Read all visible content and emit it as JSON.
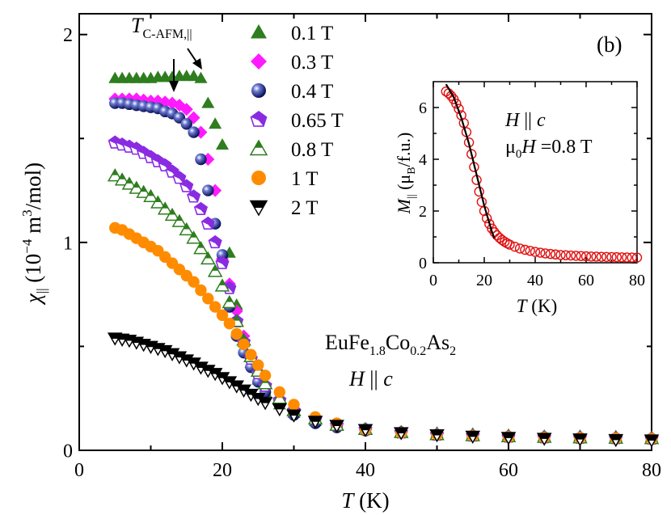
{
  "chart_data": [
    {
      "type": "scatter",
      "panel": "main",
      "xlabel": "T (K)",
      "ylabel": "χ|| (10^-4 m^3/mol)",
      "xlim": [
        0,
        80
      ],
      "ylim": [
        0,
        2.1
      ],
      "x_ticks": [
        "0",
        "20",
        "40",
        "60",
        "80"
      ],
      "y_ticks": [
        "0",
        "1",
        "2"
      ],
      "legend_position": "top-center",
      "annotations": {
        "transition_label": "TC-AFM,||",
        "panel_label": "(b)",
        "compound": "EuFe1.8Co0.2As2",
        "field_direction": "H || c"
      },
      "series": [
        {
          "name": "0.1 T",
          "color": "#2e7d1e",
          "marker": "triangle-up-filled",
          "x": [
            5,
            6,
            7,
            8,
            9,
            10,
            11,
            12,
            13,
            14,
            15,
            16,
            17,
            18,
            19,
            20,
            21,
            22,
            23,
            24,
            25,
            26,
            28,
            30,
            33,
            36,
            40,
            45,
            50,
            55,
            60,
            65,
            70,
            75,
            80
          ],
          "y": [
            1.79,
            1.79,
            1.79,
            1.79,
            1.79,
            1.79,
            1.795,
            1.795,
            1.795,
            1.8,
            1.8,
            1.8,
            1.79,
            1.67,
            1.57,
            1.47,
            0.95,
            0.7,
            0.52,
            0.42,
            0.34,
            0.28,
            0.22,
            0.18,
            0.14,
            0.12,
            0.1,
            0.09,
            0.085,
            0.08,
            0.075,
            0.07,
            0.07,
            0.068,
            0.066
          ]
        },
        {
          "name": "0.3 T",
          "color": "#ff1aff",
          "marker": "diamond-filled",
          "x": [
            5,
            6,
            7,
            8,
            9,
            10,
            11,
            12,
            13,
            14,
            15,
            16,
            17,
            18,
            19,
            20,
            21,
            22,
            23,
            24,
            25,
            26,
            28,
            30,
            33,
            36,
            40,
            45,
            50,
            55,
            60,
            65,
            70,
            75,
            80
          ],
          "y": [
            1.69,
            1.69,
            1.69,
            1.69,
            1.685,
            1.68,
            1.68,
            1.675,
            1.67,
            1.66,
            1.64,
            1.6,
            1.53,
            1.4,
            1.25,
            0.92,
            0.8,
            0.67,
            0.55,
            0.45,
            0.37,
            0.31,
            0.24,
            0.19,
            0.15,
            0.12,
            0.1,
            0.09,
            0.08,
            0.075,
            0.07,
            0.068,
            0.065,
            0.063,
            0.06
          ]
        },
        {
          "name": "0.4 T",
          "color": "#1a237e",
          "marker": "sphere",
          "x": [
            5,
            6,
            7,
            8,
            9,
            10,
            11,
            12,
            13,
            14,
            15,
            16,
            17,
            18,
            19,
            20,
            21,
            22,
            23,
            24,
            25,
            26,
            28,
            30,
            33,
            36,
            40,
            45,
            50,
            55,
            60,
            65,
            70,
            75,
            80
          ],
          "y": [
            1.67,
            1.67,
            1.665,
            1.66,
            1.655,
            1.65,
            1.645,
            1.63,
            1.62,
            1.6,
            1.57,
            1.53,
            1.4,
            1.25,
            1.09,
            0.94,
            0.69,
            0.55,
            0.47,
            0.4,
            0.33,
            0.28,
            0.22,
            0.17,
            0.13,
            0.11,
            0.095,
            0.085,
            0.075,
            0.07,
            0.065,
            0.062,
            0.06,
            0.058,
            0.056
          ]
        },
        {
          "name": "0.65 T",
          "color": "#8a2be2",
          "marker": "pentagon-filled",
          "x": [
            5,
            6,
            7,
            8,
            9,
            10,
            11,
            12,
            13,
            14,
            15,
            16,
            17,
            18,
            19,
            20,
            21,
            22,
            23,
            24,
            25,
            26,
            28,
            30,
            33,
            36,
            40,
            45,
            50,
            55,
            60,
            65,
            70,
            75,
            80
          ],
          "y": [
            1.48,
            1.47,
            1.46,
            1.45,
            1.43,
            1.41,
            1.39,
            1.37,
            1.34,
            1.31,
            1.27,
            1.22,
            1.16,
            1.09,
            1.0,
            0.9,
            0.78,
            0.62,
            0.52,
            0.44,
            0.37,
            0.31,
            0.24,
            0.19,
            0.15,
            0.12,
            0.1,
            0.085,
            0.075,
            0.07,
            0.065,
            0.062,
            0.06,
            0.058,
            0.056
          ]
        },
        {
          "name": "0.8 T",
          "color": "#2e7d1e",
          "marker": "triangle-up-half",
          "x": [
            5,
            6,
            7,
            8,
            9,
            10,
            11,
            12,
            13,
            14,
            15,
            16,
            17,
            18,
            19,
            20,
            21,
            22,
            23,
            24,
            25,
            26,
            28,
            30,
            33,
            36,
            40,
            45,
            50,
            55,
            60,
            65,
            70,
            75,
            80
          ],
          "y": [
            1.32,
            1.3,
            1.28,
            1.26,
            1.24,
            1.22,
            1.19,
            1.16,
            1.13,
            1.1,
            1.06,
            1.02,
            0.97,
            0.92,
            0.86,
            0.79,
            0.71,
            0.62,
            0.53,
            0.45,
            0.38,
            0.32,
            0.25,
            0.19,
            0.15,
            0.12,
            0.1,
            0.085,
            0.075,
            0.07,
            0.065,
            0.062,
            0.06,
            0.058,
            0.056
          ]
        },
        {
          "name": "1 T",
          "color": "#ff8c00",
          "marker": "circle-filled",
          "x": [
            5,
            6,
            7,
            8,
            9,
            10,
            11,
            12,
            13,
            14,
            15,
            16,
            17,
            18,
            19,
            20,
            21,
            22,
            23,
            24,
            25,
            26,
            28,
            30,
            33,
            36,
            40,
            45,
            50,
            55,
            60,
            65,
            70,
            75,
            80
          ],
          "y": [
            1.07,
            1.06,
            1.04,
            1.02,
            1.0,
            0.98,
            0.96,
            0.93,
            0.9,
            0.87,
            0.84,
            0.81,
            0.77,
            0.73,
            0.69,
            0.65,
            0.61,
            0.56,
            0.51,
            0.46,
            0.41,
            0.36,
            0.28,
            0.22,
            0.16,
            0.13,
            0.1,
            0.085,
            0.075,
            0.07,
            0.065,
            0.062,
            0.06,
            0.058,
            0.056
          ]
        },
        {
          "name": "2 T",
          "color": "#000000",
          "marker": "triangle-down-half",
          "x": [
            5,
            6,
            7,
            8,
            9,
            10,
            11,
            12,
            13,
            14,
            15,
            16,
            17,
            18,
            19,
            20,
            21,
            22,
            23,
            24,
            25,
            26,
            28,
            30,
            33,
            36,
            40,
            45,
            50,
            55,
            60,
            65,
            70,
            75,
            80
          ],
          "y": [
            0.54,
            0.535,
            0.53,
            0.52,
            0.51,
            0.5,
            0.49,
            0.48,
            0.465,
            0.45,
            0.435,
            0.42,
            0.4,
            0.385,
            0.37,
            0.35,
            0.33,
            0.31,
            0.29,
            0.27,
            0.25,
            0.23,
            0.2,
            0.17,
            0.14,
            0.12,
            0.1,
            0.085,
            0.075,
            0.068,
            0.062,
            0.058,
            0.055,
            0.052,
            0.05
          ]
        }
      ]
    },
    {
      "type": "scatter",
      "panel": "inset",
      "xlabel": "T (K)",
      "ylabel": "M|| (μB/f.u.)",
      "xlim": [
        0,
        80
      ],
      "ylim": [
        0,
        7
      ],
      "x_ticks": [
        "0",
        "20",
        "40",
        "60",
        "80"
      ],
      "y_ticks": [
        "0",
        "2",
        "4",
        "6"
      ],
      "annotations": {
        "field_direction": "H || c",
        "field_value": "μ0H =0.8 T"
      },
      "series": [
        {
          "name": "M",
          "color": "#e01010",
          "marker": "circle-open",
          "x": [
            5,
            6,
            7,
            8,
            9,
            10,
            11,
            12,
            13,
            14,
            15,
            16,
            17,
            18,
            19,
            20,
            21,
            22,
            23,
            24,
            25,
            26,
            27,
            28,
            29,
            30,
            32,
            34,
            36,
            38,
            40,
            42,
            44,
            46,
            48,
            50,
            52,
            54,
            56,
            58,
            60,
            62,
            64,
            66,
            68,
            70,
            72,
            74,
            76,
            78,
            80
          ],
          "y": [
            6.62,
            6.55,
            6.45,
            6.32,
            6.15,
            5.95,
            5.7,
            5.4,
            5.05,
            4.65,
            4.2,
            3.7,
            3.2,
            2.75,
            2.35,
            2.0,
            1.72,
            1.5,
            1.32,
            1.18,
            1.06,
            0.96,
            0.88,
            0.81,
            0.75,
            0.7,
            0.62,
            0.55,
            0.5,
            0.46,
            0.42,
            0.39,
            0.36,
            0.34,
            0.32,
            0.3,
            0.29,
            0.28,
            0.27,
            0.26,
            0.25,
            0.24,
            0.235,
            0.23,
            0.225,
            0.22,
            0.215,
            0.21,
            0.205,
            0.2,
            0.2
          ]
        },
        {
          "name": "fit",
          "color": "#000000",
          "marker": "line",
          "x": [
            5,
            8,
            11,
            14,
            17,
            20,
            23,
            24
          ],
          "y": [
            6.9,
            6.4,
            5.6,
            4.6,
            3.4,
            2.2,
            1.2,
            0.95
          ]
        }
      ]
    }
  ]
}
